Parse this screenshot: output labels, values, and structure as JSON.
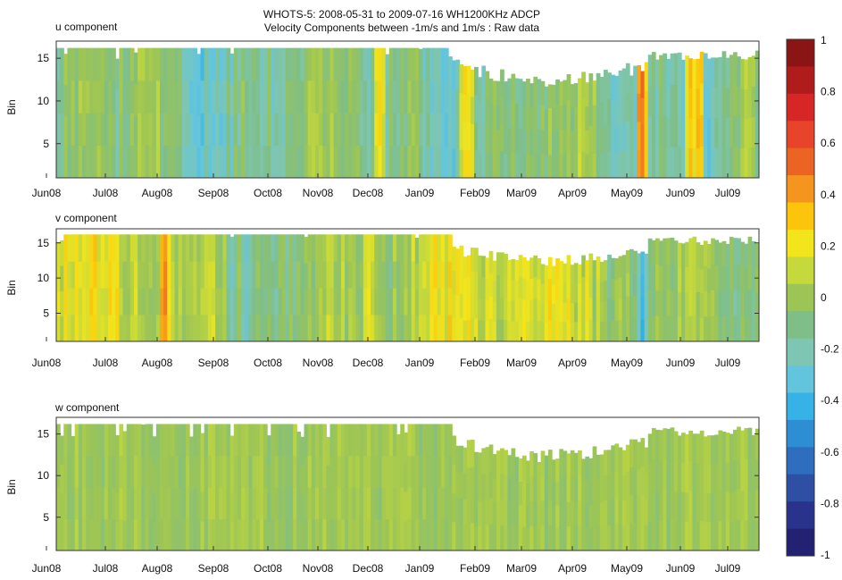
{
  "figure": {
    "title_line1": "WHOTS-5:  2008-05-31 to 2009-07-16 WH1200KHz ADCP",
    "title_line2": "Velocity Components between -1m/s and 1m/s : Raw data"
  },
  "chart_data": [
    {
      "type": "heatmap",
      "title": "u component",
      "ylabel": "Bin",
      "x_range": [
        "2008-05-31",
        "2009-07-16"
      ],
      "xticks": [
        "Jun08",
        "Jul08",
        "Aug08",
        "Sep08",
        "Oct08",
        "Nov08",
        "Dec08",
        "Jan09",
        "Feb09",
        "Mar09",
        "Apr09",
        "May09",
        "Jun09",
        "Jul09"
      ],
      "ylim": [
        1,
        17
      ],
      "yticks": [
        5,
        10,
        15
      ],
      "value_range": [
        -1,
        1
      ],
      "units": "m/s",
      "features": [
        {
          "date": "2008-09-20",
          "value": -0.2,
          "bins": [
            1,
            16
          ]
        },
        {
          "date": "2008-12-05",
          "value": 0.25,
          "bins": [
            1,
            16
          ]
        },
        {
          "date": "2009-01-25",
          "value": 0.3,
          "bins": [
            1,
            14
          ]
        },
        {
          "date": "2009-05-07",
          "value": 0.6,
          "bins": [
            1,
            14
          ]
        },
        {
          "date": "2009-06-05",
          "value": 0.35,
          "bins": [
            1,
            15
          ]
        },
        {
          "date": "2009-06-10",
          "value": 0.4,
          "bins": [
            1,
            15
          ]
        }
      ]
    },
    {
      "type": "heatmap",
      "title": "v component",
      "ylabel": "Bin",
      "x_range": [
        "2008-05-31",
        "2009-07-16"
      ],
      "xticks": [
        "Jun08",
        "Jul08",
        "Aug08",
        "Sep08",
        "Oct08",
        "Nov08",
        "Dec08",
        "Jan09",
        "Feb09",
        "Mar09",
        "Apr09",
        "May09",
        "Jun09",
        "Jul09"
      ],
      "ylim": [
        1,
        17
      ],
      "yticks": [
        5,
        10,
        15
      ],
      "value_range": [
        -1,
        1
      ],
      "units": "m/s",
      "features": [
        {
          "date": "2008-07-01",
          "value": 0.3,
          "bins": [
            1,
            16
          ]
        },
        {
          "date": "2008-08-01",
          "value": 0.55,
          "bins": [
            1,
            16
          ]
        },
        {
          "date": "2008-09-10",
          "value": -0.25,
          "bins": [
            1,
            16
          ]
        },
        {
          "date": "2008-09-18",
          "value": -0.3,
          "bins": [
            1,
            16
          ]
        },
        {
          "date": "2008-11-28",
          "value": 0.25,
          "bins": [
            1,
            16
          ]
        },
        {
          "date": "2009-01-20",
          "value": 0.25,
          "bins": [
            1,
            15
          ]
        },
        {
          "date": "2009-05-08",
          "value": -0.45,
          "bins": [
            2,
            13
          ]
        }
      ]
    },
    {
      "type": "heatmap",
      "title": "w component",
      "ylabel": "Bin",
      "x_range": [
        "2008-05-31",
        "2009-07-16"
      ],
      "xticks": [
        "Jun08",
        "Jul08",
        "Aug08",
        "Sep08",
        "Oct08",
        "Nov08",
        "Dec08",
        "Jan09",
        "Feb09",
        "Mar09",
        "Apr09",
        "May09",
        "Jun09",
        "Jul09"
      ],
      "ylim": [
        1,
        17
      ],
      "yticks": [
        5,
        10,
        15
      ],
      "value_range": [
        -1,
        1
      ],
      "units": "m/s",
      "features": [
        {
          "date": "2008-05-31",
          "value": 0.0,
          "bins": [
            1,
            16
          ]
        }
      ]
    }
  ],
  "colorbar": {
    "ticks": [
      "1",
      "0.8",
      "0.6",
      "0.4",
      "0.2",
      "0",
      "-0.2",
      "-0.4",
      "-0.6",
      "-0.8",
      "-1"
    ],
    "colors": [
      "#8b1414",
      "#b01c1c",
      "#d62626",
      "#e8432b",
      "#ec6424",
      "#f5941e",
      "#fcc40a",
      "#f3e51c",
      "#c5d93c",
      "#9dc555",
      "#7fbe86",
      "#7ec6b3",
      "#63c5dd",
      "#36b2e6",
      "#2e8ed4",
      "#2f6dbf",
      "#2f4fa5",
      "#2a338c",
      "#232272"
    ]
  }
}
